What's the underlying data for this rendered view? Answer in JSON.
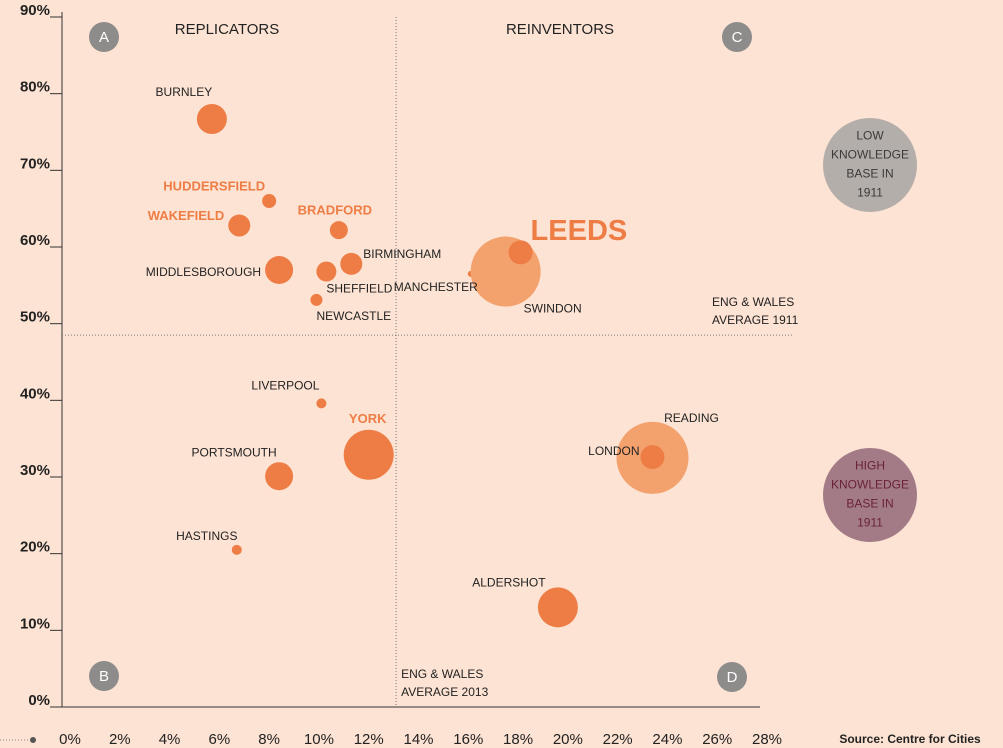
{
  "chart_data": {
    "type": "scatter",
    "quadrant_titles": [
      "REPLICATORS",
      "REINVENTORS"
    ],
    "quadrant_letters": [
      "A",
      "B",
      "C",
      "D"
    ],
    "source": "Source: Centre for Cities",
    "xlim": [
      0,
      28
    ],
    "ylim": [
      0,
      90
    ],
    "xticks": [
      {
        "value": 0,
        "label": "0%"
      },
      {
        "value": 2,
        "label": "2%"
      },
      {
        "value": 4,
        "label": "4%"
      },
      {
        "value": 6,
        "label": "6%"
      },
      {
        "value": 8,
        "label": "8%"
      },
      {
        "value": 10,
        "label": "10%"
      },
      {
        "value": 12,
        "label": "12%"
      },
      {
        "value": 14,
        "label": "14%"
      },
      {
        "value": 16,
        "label": "16%"
      },
      {
        "value": 18,
        "label": "18%"
      },
      {
        "value": 20,
        "label": "20%"
      },
      {
        "value": 22,
        "label": "22%"
      },
      {
        "value": 24,
        "label": "24%"
      },
      {
        "value": 26,
        "label": "26%"
      },
      {
        "value": 28,
        "label": "28%"
      }
    ],
    "yticks": [
      {
        "value": 0,
        "label": "0%"
      },
      {
        "value": 10,
        "label": "10%"
      },
      {
        "value": 20,
        "label": "20%"
      },
      {
        "value": 30,
        "label": "30%"
      },
      {
        "value": 40,
        "label": "40%"
      },
      {
        "value": 50,
        "label": "50%"
      },
      {
        "value": 60,
        "label": "60%"
      },
      {
        "value": 70,
        "label": "70%"
      },
      {
        "value": 80,
        "label": "80%"
      },
      {
        "value": 90,
        "label": "90%"
      }
    ],
    "reference_lines": [
      {
        "axis": "x",
        "value": 13.1,
        "label": [
          "ENG & WALES",
          "AVERAGE 2013"
        ]
      },
      {
        "axis": "y",
        "value": 48.5,
        "label": [
          "ENG & WALES",
          "AVERAGE 1911"
        ]
      }
    ],
    "legend": [
      {
        "label": [
          "LOW",
          "KNOWLEDGE",
          "BASE IN",
          "1911"
        ],
        "color": "#b4aeab",
        "text_color": "#3a3a3a"
      },
      {
        "label": [
          "HIGH",
          "KNOWLEDGE",
          "BASE IN",
          "1911"
        ],
        "color": "#a27b87",
        "text_color": "#6b2238"
      }
    ],
    "points": [
      {
        "name": "BURNLEY",
        "x": 5.7,
        "y": 76.7,
        "size": 225,
        "color": "#ee7d45",
        "label_style": "normal"
      },
      {
        "name": "HUDDERSFIELD",
        "x": 8.0,
        "y": 66.0,
        "size": 49,
        "color": "#ee7d45",
        "label_style": "bold"
      },
      {
        "name": "WAKEFIELD",
        "x": 6.8,
        "y": 62.8,
        "size": 121,
        "color": "#ee7d45",
        "label_style": "bold"
      },
      {
        "name": "BRADFORD",
        "x": 10.8,
        "y": 62.2,
        "size": 81,
        "color": "#ee7d45",
        "label_style": "bold"
      },
      {
        "name": "MIDDLESBOROUGH",
        "x": 8.4,
        "y": 57.0,
        "size": 196,
        "color": "#ee7d45",
        "label_style": "normal"
      },
      {
        "name": "SHEFFIELD",
        "x": 10.3,
        "y": 56.8,
        "size": 100,
        "color": "#ee7d45",
        "label_style": "normal"
      },
      {
        "name": "BIRMINGHAM",
        "x": 11.3,
        "y": 57.8,
        "size": 121,
        "color": "#ee7d45",
        "label_style": "normal"
      },
      {
        "name": "NEWCASTLE",
        "x": 9.9,
        "y": 53.1,
        "size": 36,
        "color": "#ee7d45",
        "label_style": "normal"
      },
      {
        "name": "MANCHESTER",
        "x": 16.1,
        "y": 56.5,
        "size": 9,
        "color": "#ee7d45",
        "label_style": "normal"
      },
      {
        "name": "SWINDON",
        "x": 17.5,
        "y": 56.8,
        "size": 1225,
        "color": "#f3a26e",
        "label_style": "normal"
      },
      {
        "name": "LEEDS",
        "x": 18.1,
        "y": 59.3,
        "size": 144,
        "color": "#ee7d45",
        "label_style": "large"
      },
      {
        "name": "LIVERPOOL",
        "x": 10.1,
        "y": 39.6,
        "size": 25,
        "color": "#ee7d45",
        "label_style": "normal"
      },
      {
        "name": "YORK",
        "x": 12.0,
        "y": 32.9,
        "size": 625,
        "color": "#ee7d45",
        "label_style": "bold"
      },
      {
        "name": "PORTSMOUTH",
        "x": 8.4,
        "y": 30.1,
        "size": 196,
        "color": "#ee7d45",
        "label_style": "normal"
      },
      {
        "name": "HASTINGS",
        "x": 6.7,
        "y": 20.5,
        "size": 25,
        "color": "#ee7d45",
        "label_style": "normal"
      },
      {
        "name": "ALDERSHOT",
        "x": 19.6,
        "y": 13.0,
        "size": 400,
        "color": "#ee7d45",
        "label_style": "normal"
      },
      {
        "name": "READING",
        "x": 23.4,
        "y": 32.5,
        "size": 1296,
        "color": "#f3a26e",
        "label_style": "normal"
      },
      {
        "name": "LONDON",
        "x": 23.4,
        "y": 32.6,
        "size": 144,
        "color": "#ee7d45",
        "label_style": "normal"
      }
    ]
  }
}
